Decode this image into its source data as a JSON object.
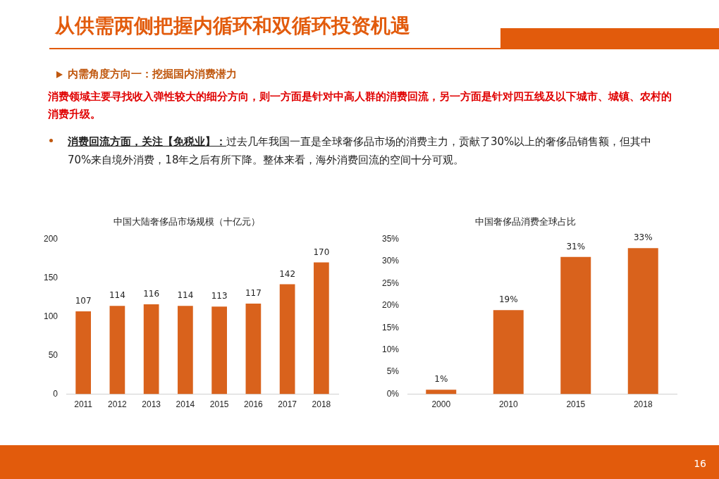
{
  "chart_data": [
    {
      "type": "other",
      "title": "从供需两侧把握内循环和双循环投资机遇",
      "annotations": [
        "内需角度方向一：挖掘国内消费潜力",
        "消费领域主要寻找收入弹性较大的细分方向，则一方面是针对中高人群的消费回流，另一方面是针对四五线及以下城市、城镇、农村的消费升级。",
        "消费回流方面，关注【免税业】：",
        "过去几年我国一直是全球奢侈品市场的消费主力，贡献了30%以上的奢侈品销售额，但其中70%来自境外消费，18年之后有所下降。整体来看，海外消费回流的空间十分可观。",
        "16"
      ]
    },
    {
      "type": "bar",
      "title": "中国大陆奢侈品市场规模（十亿元）",
      "categories": [
        "2011",
        "2012",
        "2013",
        "2014",
        "2015",
        "2016",
        "2017",
        "2018"
      ],
      "values": [
        107,
        114,
        116,
        114,
        113,
        117,
        142,
        170
      ],
      "color": "#d9621c",
      "ylim": [
        0,
        200
      ],
      "yticks": [
        0,
        50,
        100,
        150,
        200
      ],
      "grid": false,
      "data_labels": true
    },
    {
      "type": "bar",
      "title": "中国奢侈品消费全球占比",
      "categories": [
        "2000",
        "2010",
        "2015",
        "2018"
      ],
      "values": [
        1,
        19,
        31,
        33
      ],
      "value_labels": [
        "1%",
        "19%",
        "31%",
        "33%"
      ],
      "color": "#d9621c",
      "ylim": [
        0,
        35
      ],
      "yticks": [
        {
          "value": 0,
          "label": "0%"
        },
        {
          "value": 5,
          "label": "5%"
        },
        {
          "value": 10,
          "label": "10%"
        },
        {
          "value": 15,
          "label": "15%"
        },
        {
          "value": 20,
          "label": "20%"
        },
        {
          "value": 25,
          "label": "25%"
        },
        {
          "value": 30,
          "label": "30%"
        },
        {
          "value": 35,
          "label": "35%"
        }
      ],
      "grid": false
    }
  ]
}
